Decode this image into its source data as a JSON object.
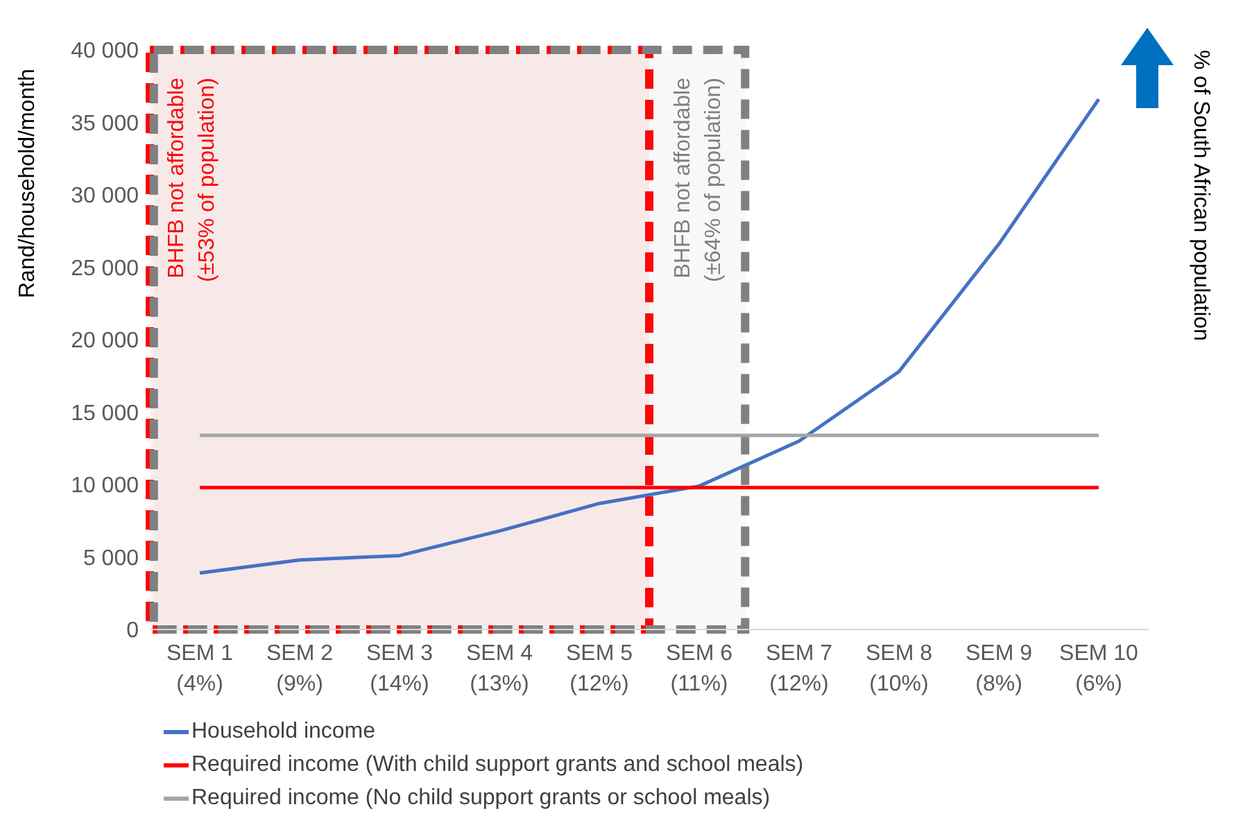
{
  "chart_data": {
    "type": "line",
    "ylabel": "Rand/household/month",
    "y2label": "% of South African population",
    "categories": [
      "SEM 1\n(4%)",
      "SEM 2\n(9%)",
      "SEM 3\n(14%)",
      "SEM 4\n(13%)",
      "SEM 5\n(12%)",
      "SEM 6\n(11%)",
      "SEM 7\n(12%)",
      "SEM 8\n(10%)",
      "SEM 9\n(8%)",
      "SEM 10\n(6%)"
    ],
    "series": [
      {
        "name": "Household income",
        "color": "#4472c4",
        "values": [
          3900,
          4800,
          5100,
          6800,
          8700,
          9900,
          13000,
          17800,
          26600,
          36600
        ]
      },
      {
        "name": "Required income (With child support grants and school meals)",
        "color": "#ff0000",
        "values": [
          9800,
          9800,
          9800,
          9800,
          9800,
          9800,
          9800,
          9800,
          9800,
          9800
        ]
      },
      {
        "name": "Required income (No child support grants or school meals)",
        "color": "#a5a5a5",
        "values": [
          13400,
          13400,
          13400,
          13400,
          13400,
          13400,
          13400,
          13400,
          13400,
          13400
        ]
      }
    ],
    "bands": [
      {
        "axis": "x",
        "from": "SEM 1\n(4%)",
        "to": "SEM 5\n(12%)",
        "label": "BHFB not affordable\n(±53% of population)",
        "color": "#ff0000"
      },
      {
        "axis": "x",
        "from": "SEM 1\n(4%)",
        "to": "SEM 6\n(11%)",
        "label": "BHFB not affordable\n(±64% of population)",
        "color": "#808080"
      }
    ],
    "ylim": [
      0,
      40000
    ],
    "yticks": [
      {
        "value": 0,
        "label": "0"
      },
      {
        "value": 5000,
        "label": "5 000"
      },
      {
        "value": 10000,
        "label": "10 000"
      },
      {
        "value": 15000,
        "label": "15 000"
      },
      {
        "value": 20000,
        "label": "20 000"
      },
      {
        "value": 25000,
        "label": "25 000"
      },
      {
        "value": 30000,
        "label": "30 000"
      },
      {
        "value": 35000,
        "label": "35 000"
      },
      {
        "value": 40000,
        "label": "40 000"
      }
    ],
    "grid": false,
    "legend": "bottom left",
    "marker": "none",
    "line_style": "solid"
  }
}
